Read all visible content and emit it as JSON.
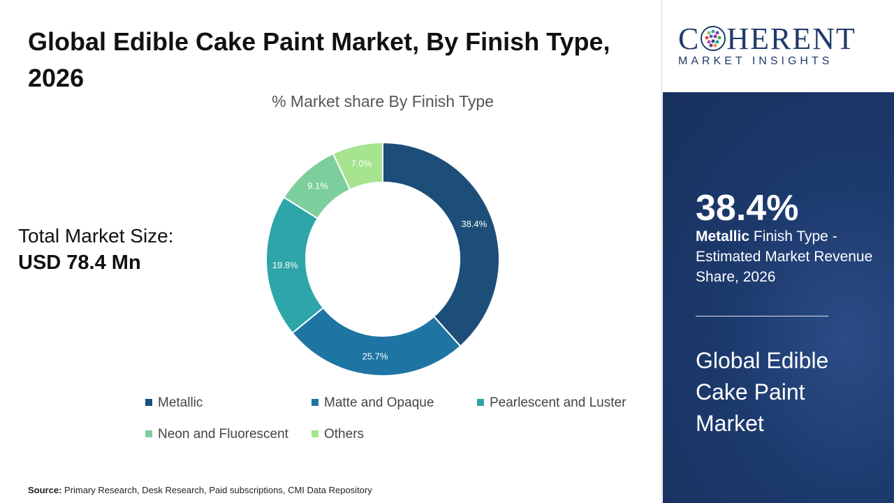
{
  "title": "Global Edible Cake Paint Market, By Finish Type, 2026",
  "market_size": {
    "label": "Total Market Size:",
    "value": "USD 78.4 Mn"
  },
  "source": {
    "label": "Source:",
    "text": "Primary Research, Desk Research, Paid subscriptions, CMI Data Repository"
  },
  "logo": {
    "top": [
      "C",
      "HERENT"
    ],
    "bottom": "MARKET INSIGHTS"
  },
  "highlight": {
    "value": "38.4%",
    "bold": "Metallic",
    "text": " Finish Type - Estimated Market Revenue Share, 2026"
  },
  "side_title": "Global Edible Cake Paint Market",
  "colors": {
    "panel_blue": "#1d3a6e",
    "logo_blue": "#1f3a68"
  },
  "chart_data": {
    "type": "pie",
    "title": "% Market share By Finish Type",
    "categories": [
      "Metallic",
      "Matte and Opaque",
      "Pearlescent and Luster",
      "Neon and Fluorescent",
      "Others"
    ],
    "values": [
      38.4,
      25.7,
      19.8,
      9.1,
      7.0
    ],
    "labels": [
      "38.4%",
      "25.7%",
      "19.8%",
      "9.1%",
      "7.0%"
    ],
    "colors": [
      "#1d4e79",
      "#1e75a3",
      "#2ea5a8",
      "#7ccf9c",
      "#a6e48f"
    ],
    "donut": true,
    "legend": "bottom"
  }
}
